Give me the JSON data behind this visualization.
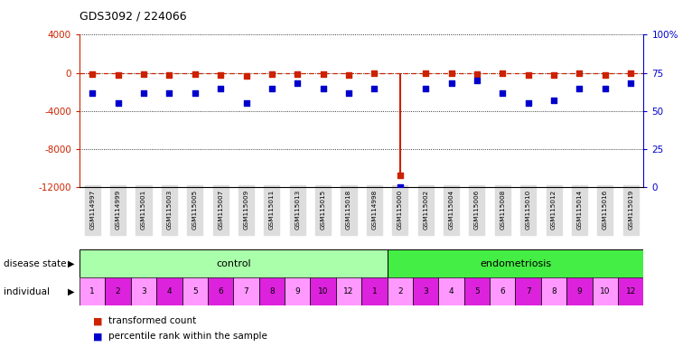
{
  "title": "GDS3092 / 224066",
  "samples": [
    "GSM114997",
    "GSM114999",
    "GSM115001",
    "GSM115003",
    "GSM115005",
    "GSM115007",
    "GSM115009",
    "GSM115011",
    "GSM115013",
    "GSM115015",
    "GSM115018",
    "GSM114998",
    "GSM115000",
    "GSM115002",
    "GSM115004",
    "GSM115006",
    "GSM115008",
    "GSM115010",
    "GSM115012",
    "GSM115014",
    "GSM115016",
    "GSM115019"
  ],
  "transformed_count": [
    -100,
    -200,
    -100,
    -200,
    -150,
    -200,
    -300,
    -100,
    -100,
    -100,
    -200,
    -50,
    -10700,
    -80,
    -80,
    -100,
    -50,
    -200,
    -200,
    -80,
    -200,
    -80
  ],
  "percentile_rank": [
    62,
    55,
    62,
    62,
    62,
    65,
    55,
    65,
    68,
    65,
    62,
    65,
    0,
    65,
    68,
    70,
    62,
    55,
    57,
    65,
    65,
    68
  ],
  "ylim_left": [
    -12000,
    4000
  ],
  "ylim_right": [
    0,
    100
  ],
  "yticks_left": [
    -12000,
    -8000,
    -4000,
    0,
    4000
  ],
  "ytick_labels_left": [
    "-12000",
    "-8000",
    "-4000",
    "0",
    "4000"
  ],
  "yticks_right": [
    0,
    25,
    50,
    75,
    100
  ],
  "ytick_labels_right": [
    "0",
    "25",
    "50",
    "75",
    "100%"
  ],
  "control_n": 12,
  "endo_n": 10,
  "individual_labels": [
    "1",
    "2",
    "3",
    "4",
    "5",
    "6",
    "7",
    "8",
    "9",
    "10",
    "12",
    "1",
    "2",
    "3",
    "4",
    "5",
    "6",
    "7",
    "8",
    "9",
    "10",
    "12"
  ],
  "control_color": "#AAFFAA",
  "endo_color": "#44EE44",
  "magenta_dark": "#DD22DD",
  "magenta_light": "#FF99FF",
  "magenta_indices": [
    1,
    3,
    5,
    7,
    9,
    11,
    13,
    15,
    17,
    19,
    21
  ],
  "red_color": "#CC2200",
  "blue_color": "#0000CC",
  "grid_color": "#000000",
  "sample_bg": "#DDDDDD"
}
